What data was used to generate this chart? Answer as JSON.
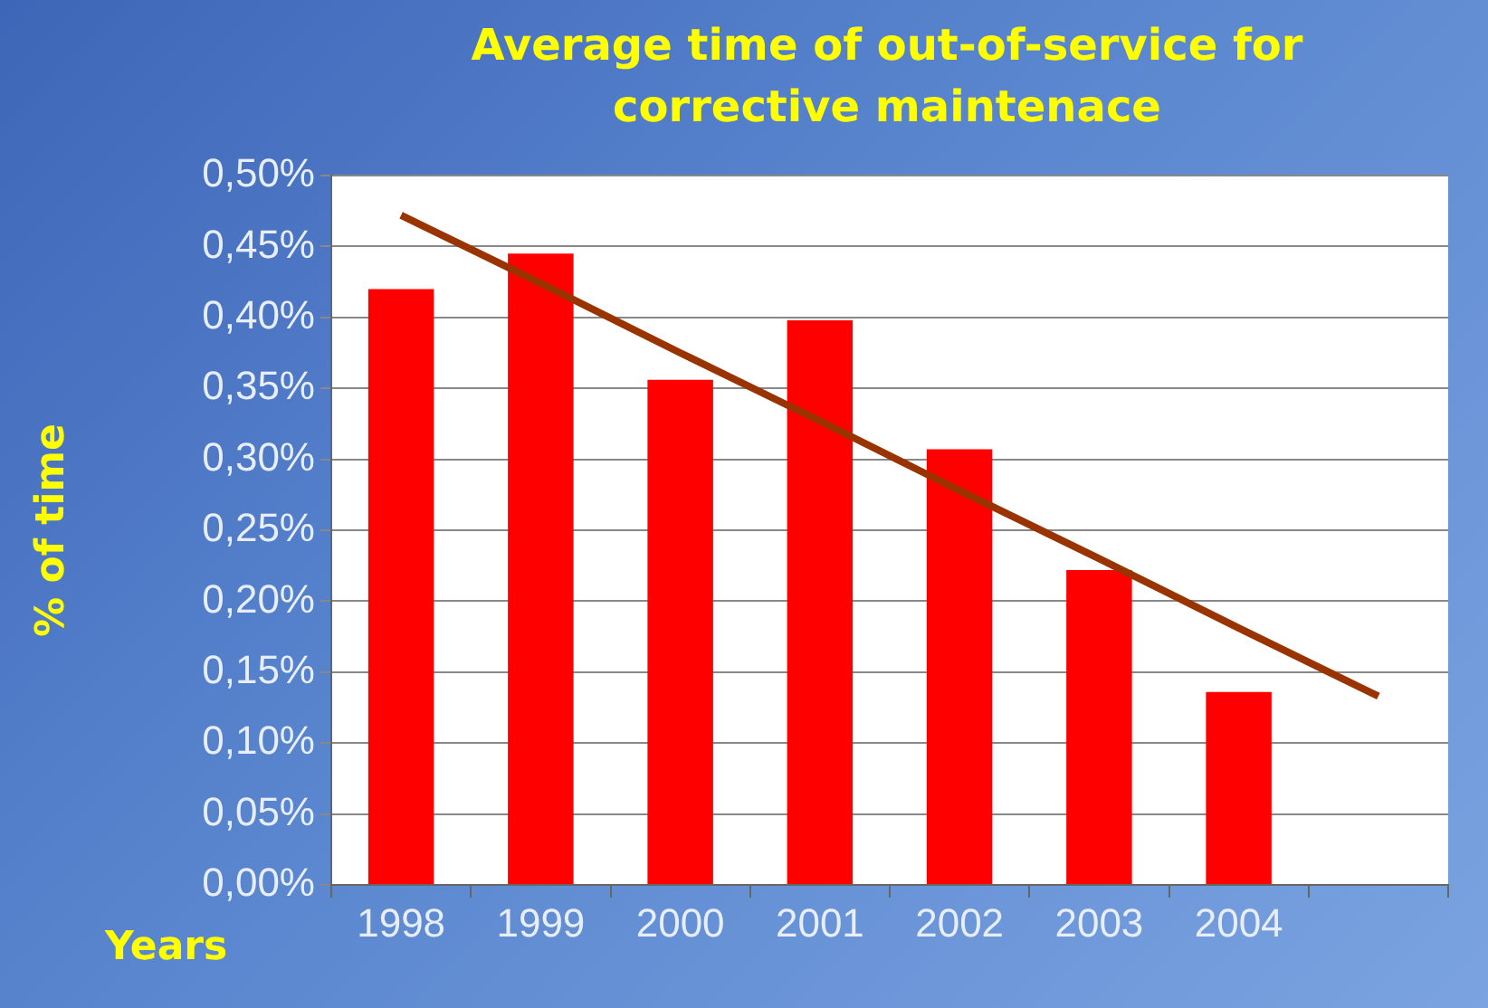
{
  "chart_data": {
    "type": "bar",
    "title": "Average time of out-of-service for corrective maintenace",
    "xlabel": "Years",
    "ylabel": "% of time",
    "categories": [
      "1998",
      "1999",
      "2000",
      "2001",
      "2002",
      "2003",
      "2004",
      null
    ],
    "series": [
      {
        "color": "#ff0000",
        "values": [
          0.42,
          0.445,
          0.356,
          0.398,
          0.307,
          0.222,
          0.136,
          null
        ]
      },
      {
        "type": "line",
        "color": "#993300",
        "values": [
          0.472,
          0.424,
          0.375,
          0.327,
          0.278,
          0.23,
          0.181,
          0.133
        ]
      }
    ],
    "ylim": [
      0,
      0.5
    ],
    "yticks": [
      {
        "value": 0,
        "label": "0,00%"
      },
      {
        "value": 0.05,
        "label": "0,05%"
      },
      {
        "value": 0.1,
        "label": "0,10%"
      },
      {
        "value": 0.15,
        "label": "0,15%"
      },
      {
        "value": 0.2,
        "label": "0,20%"
      },
      {
        "value": 0.25,
        "label": "0,25%"
      },
      {
        "value": 0.3,
        "label": "0,30%"
      },
      {
        "value": 0.35,
        "label": "0,35%"
      },
      {
        "value": 0.4,
        "label": "0,40%"
      },
      {
        "value": 0.45,
        "label": "0,45%"
      },
      {
        "value": 0.5,
        "label": "0,50%"
      }
    ],
    "grid": "y",
    "legend": false,
    "marker": "none"
  }
}
